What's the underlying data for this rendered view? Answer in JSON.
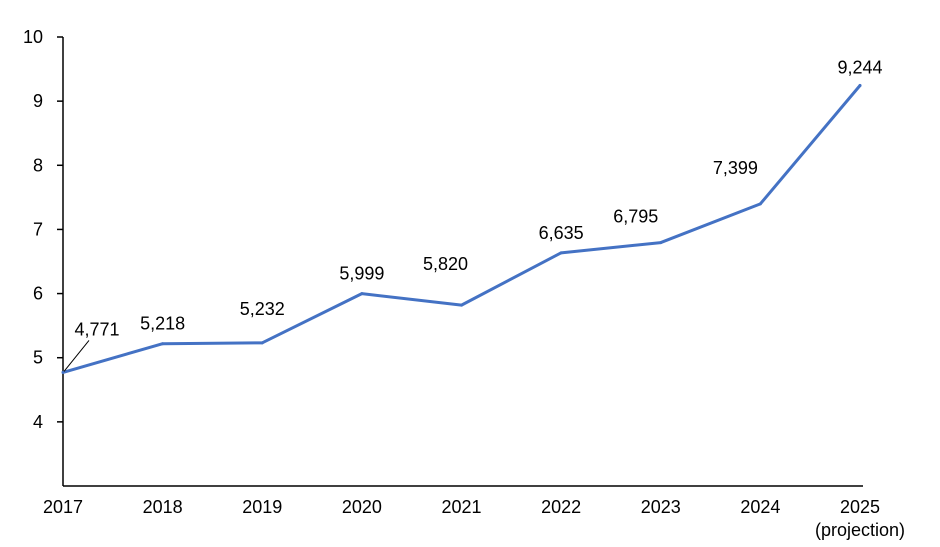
{
  "chart_data": {
    "type": "line",
    "title": "",
    "xlabel": "",
    "ylabel": "",
    "ylim": [
      3,
      10
    ],
    "y_ticks": [
      4,
      5,
      6,
      7,
      8,
      9,
      10
    ],
    "grid": false,
    "categories": [
      "2017",
      "2018",
      "2019",
      "2020",
      "2021",
      "2022",
      "2023",
      "2024",
      "2025"
    ],
    "category_sublabels": [
      "",
      "",
      "",
      "",
      "",
      "",
      "",
      "",
      "(projection)"
    ],
    "series": [
      {
        "values": [
          4.771,
          5.218,
          5.232,
          5.999,
          5.82,
          6.635,
          6.795,
          7.399,
          9.244
        ],
        "data_labels": [
          "4,771",
          "5,218",
          "5,232",
          "5,999",
          "5,820",
          "6,635",
          "6,795",
          "7,399",
          "9,244"
        ],
        "color": "#4472C4"
      }
    ]
  }
}
